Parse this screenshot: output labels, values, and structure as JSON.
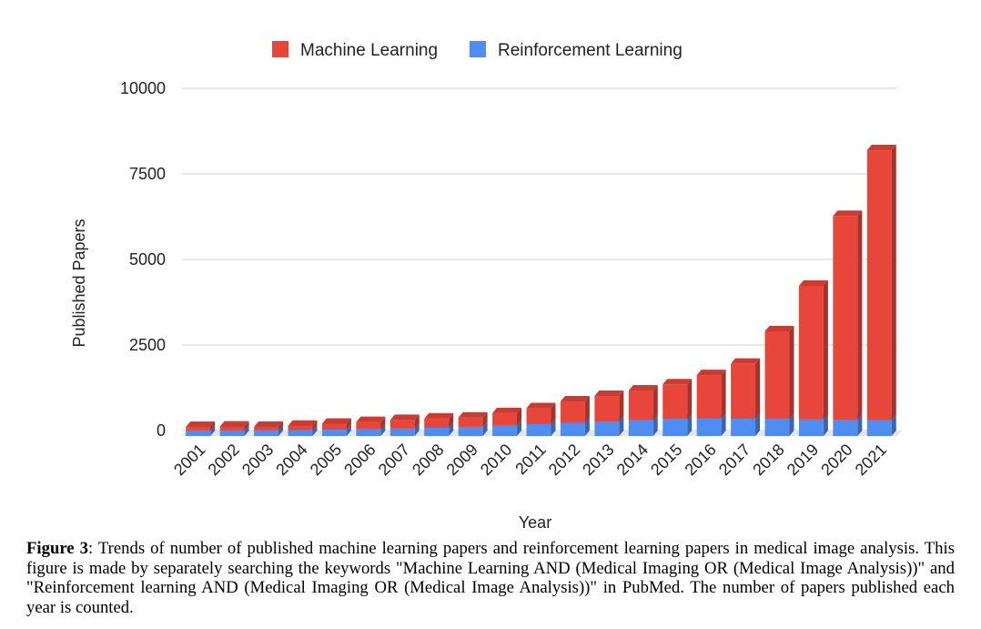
{
  "chart_data": {
    "type": "bar",
    "stacked": true,
    "style": "3d",
    "categories": [
      "2001",
      "2002",
      "2003",
      "2004",
      "2005",
      "2006",
      "2007",
      "2008",
      "2009",
      "2010",
      "2011",
      "2012",
      "2013",
      "2014",
      "2015",
      "2016",
      "2017",
      "2018",
      "2019",
      "2020",
      "2021"
    ],
    "series": [
      {
        "name": "Reinforcement Learning",
        "color": "#4f8ef0",
        "values": [
          5,
          8,
          10,
          15,
          25,
          35,
          60,
          80,
          110,
          150,
          190,
          230,
          270,
          310,
          340,
          350,
          345,
          340,
          330,
          320,
          310
        ]
      },
      {
        "name": "Machine Learning",
        "color": "#e8463a",
        "values": [
          100,
          110,
          100,
          125,
          175,
          215,
          250,
          270,
          270,
          360,
          460,
          620,
          740,
          860,
          1010,
          1270,
          1605,
          2560,
          3900,
          5950,
          7880
        ]
      }
    ],
    "xlabel": "Year",
    "ylabel": "Published Papers",
    "yticks": [
      0,
      2500,
      5000,
      7500,
      10000
    ],
    "ylim": [
      0,
      10000
    ],
    "legend_position": "top",
    "grid": true
  },
  "caption": {
    "label": "Figure 3",
    "text": ": Trends of number of published machine learning papers and reinforcement learning papers in medical image analysis. This figure is made by separately searching the keywords \"Machine Learning AND (Medical Imaging OR (Medical Image Analysis))\" and \"Reinforcement learning AND (Medical Imaging OR (Medical Image Analysis))\" in PubMed. The number of papers published each year is counted."
  }
}
